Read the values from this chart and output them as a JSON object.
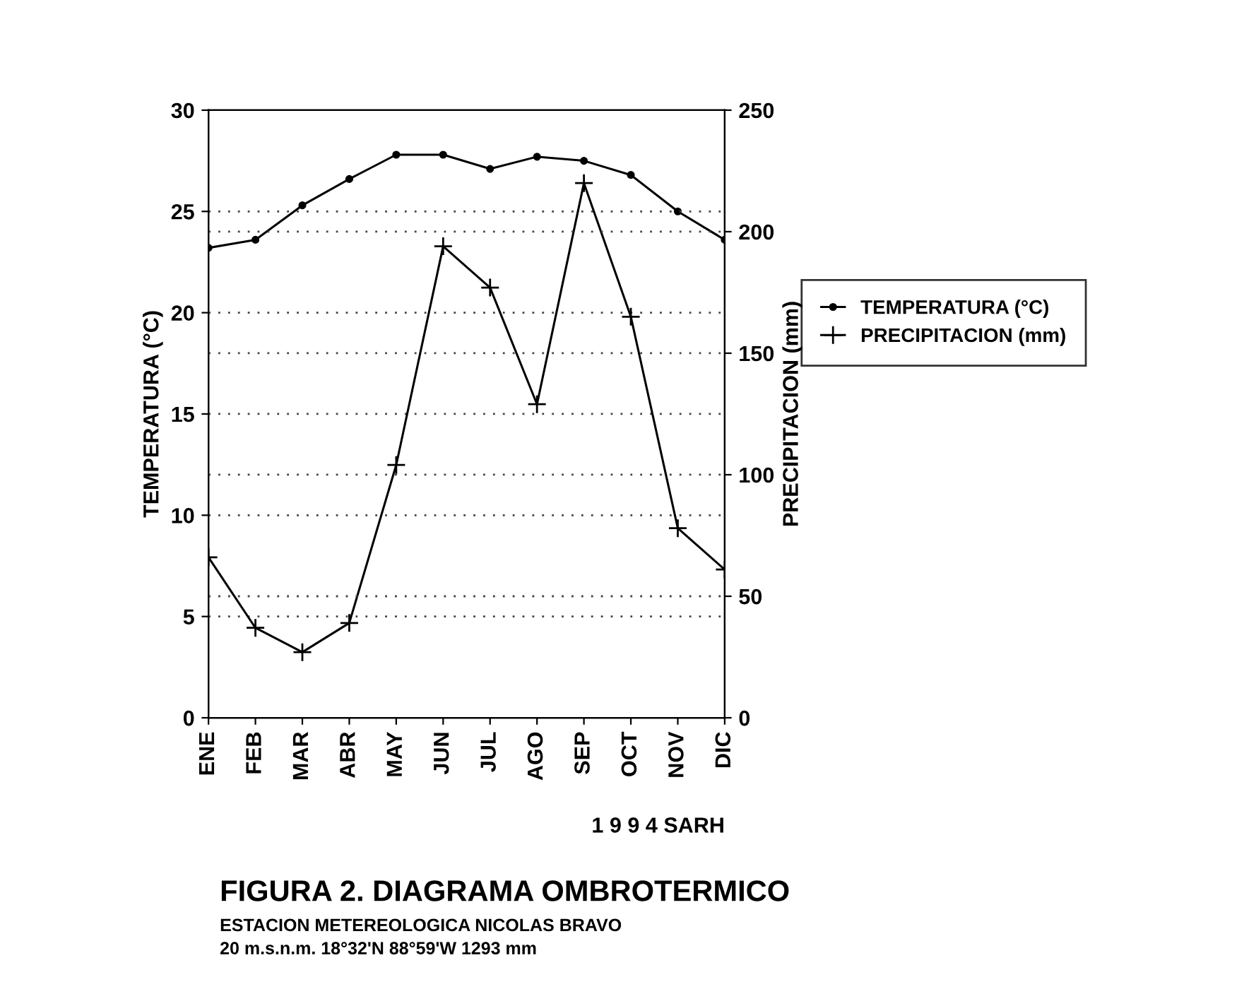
{
  "chart_data": {
    "type": "line",
    "title": "FIGURA 2. DIAGRAMA OMBROTERMICO",
    "subtitle": "ESTACION METEREOLOGICA NICOLAS BRAVO",
    "ylabel": "TEMPERATURA (°C)",
    "y2label": "PRECIPITACION (mm)",
    "categories": [
      "ENE",
      "FEB",
      "MAR",
      "ABR",
      "MAY",
      "JUN",
      "JUL",
      "AGO",
      "SEP",
      "OCT",
      "NOV",
      "DIC"
    ],
    "series": [
      {
        "name": "TEMPERATURA (°C)",
        "color": "#000000",
        "marker": "circle",
        "values": [
          23.2,
          23.6,
          25.3,
          26.6,
          27.8,
          27.8,
          27.1,
          27.7,
          27.5,
          26.8,
          25.0,
          23.6
        ]
      },
      {
        "name": "PRECIPITACION (mm)",
        "color": "#000000",
        "marker": "cross",
        "axis": "y2",
        "values": [
          66,
          37,
          27,
          39,
          104,
          194,
          177,
          129,
          220,
          165,
          78,
          61
        ]
      }
    ],
    "ylim": [
      0,
      30
    ],
    "yticks": [
      0,
      5,
      10,
      15,
      20,
      25,
      30
    ],
    "y2lim": [
      0,
      250
    ],
    "y2ticks": [
      0,
      50,
      100,
      150,
      200,
      250
    ],
    "grid": "y",
    "legend": "right",
    "line_style": "solid",
    "annotations": [
      {
        "text": "1 9 9 4 SARH"
      },
      {
        "text": "20 m.s.n.m. 18°32'N 88°59'W 1293 mm"
      }
    ]
  }
}
